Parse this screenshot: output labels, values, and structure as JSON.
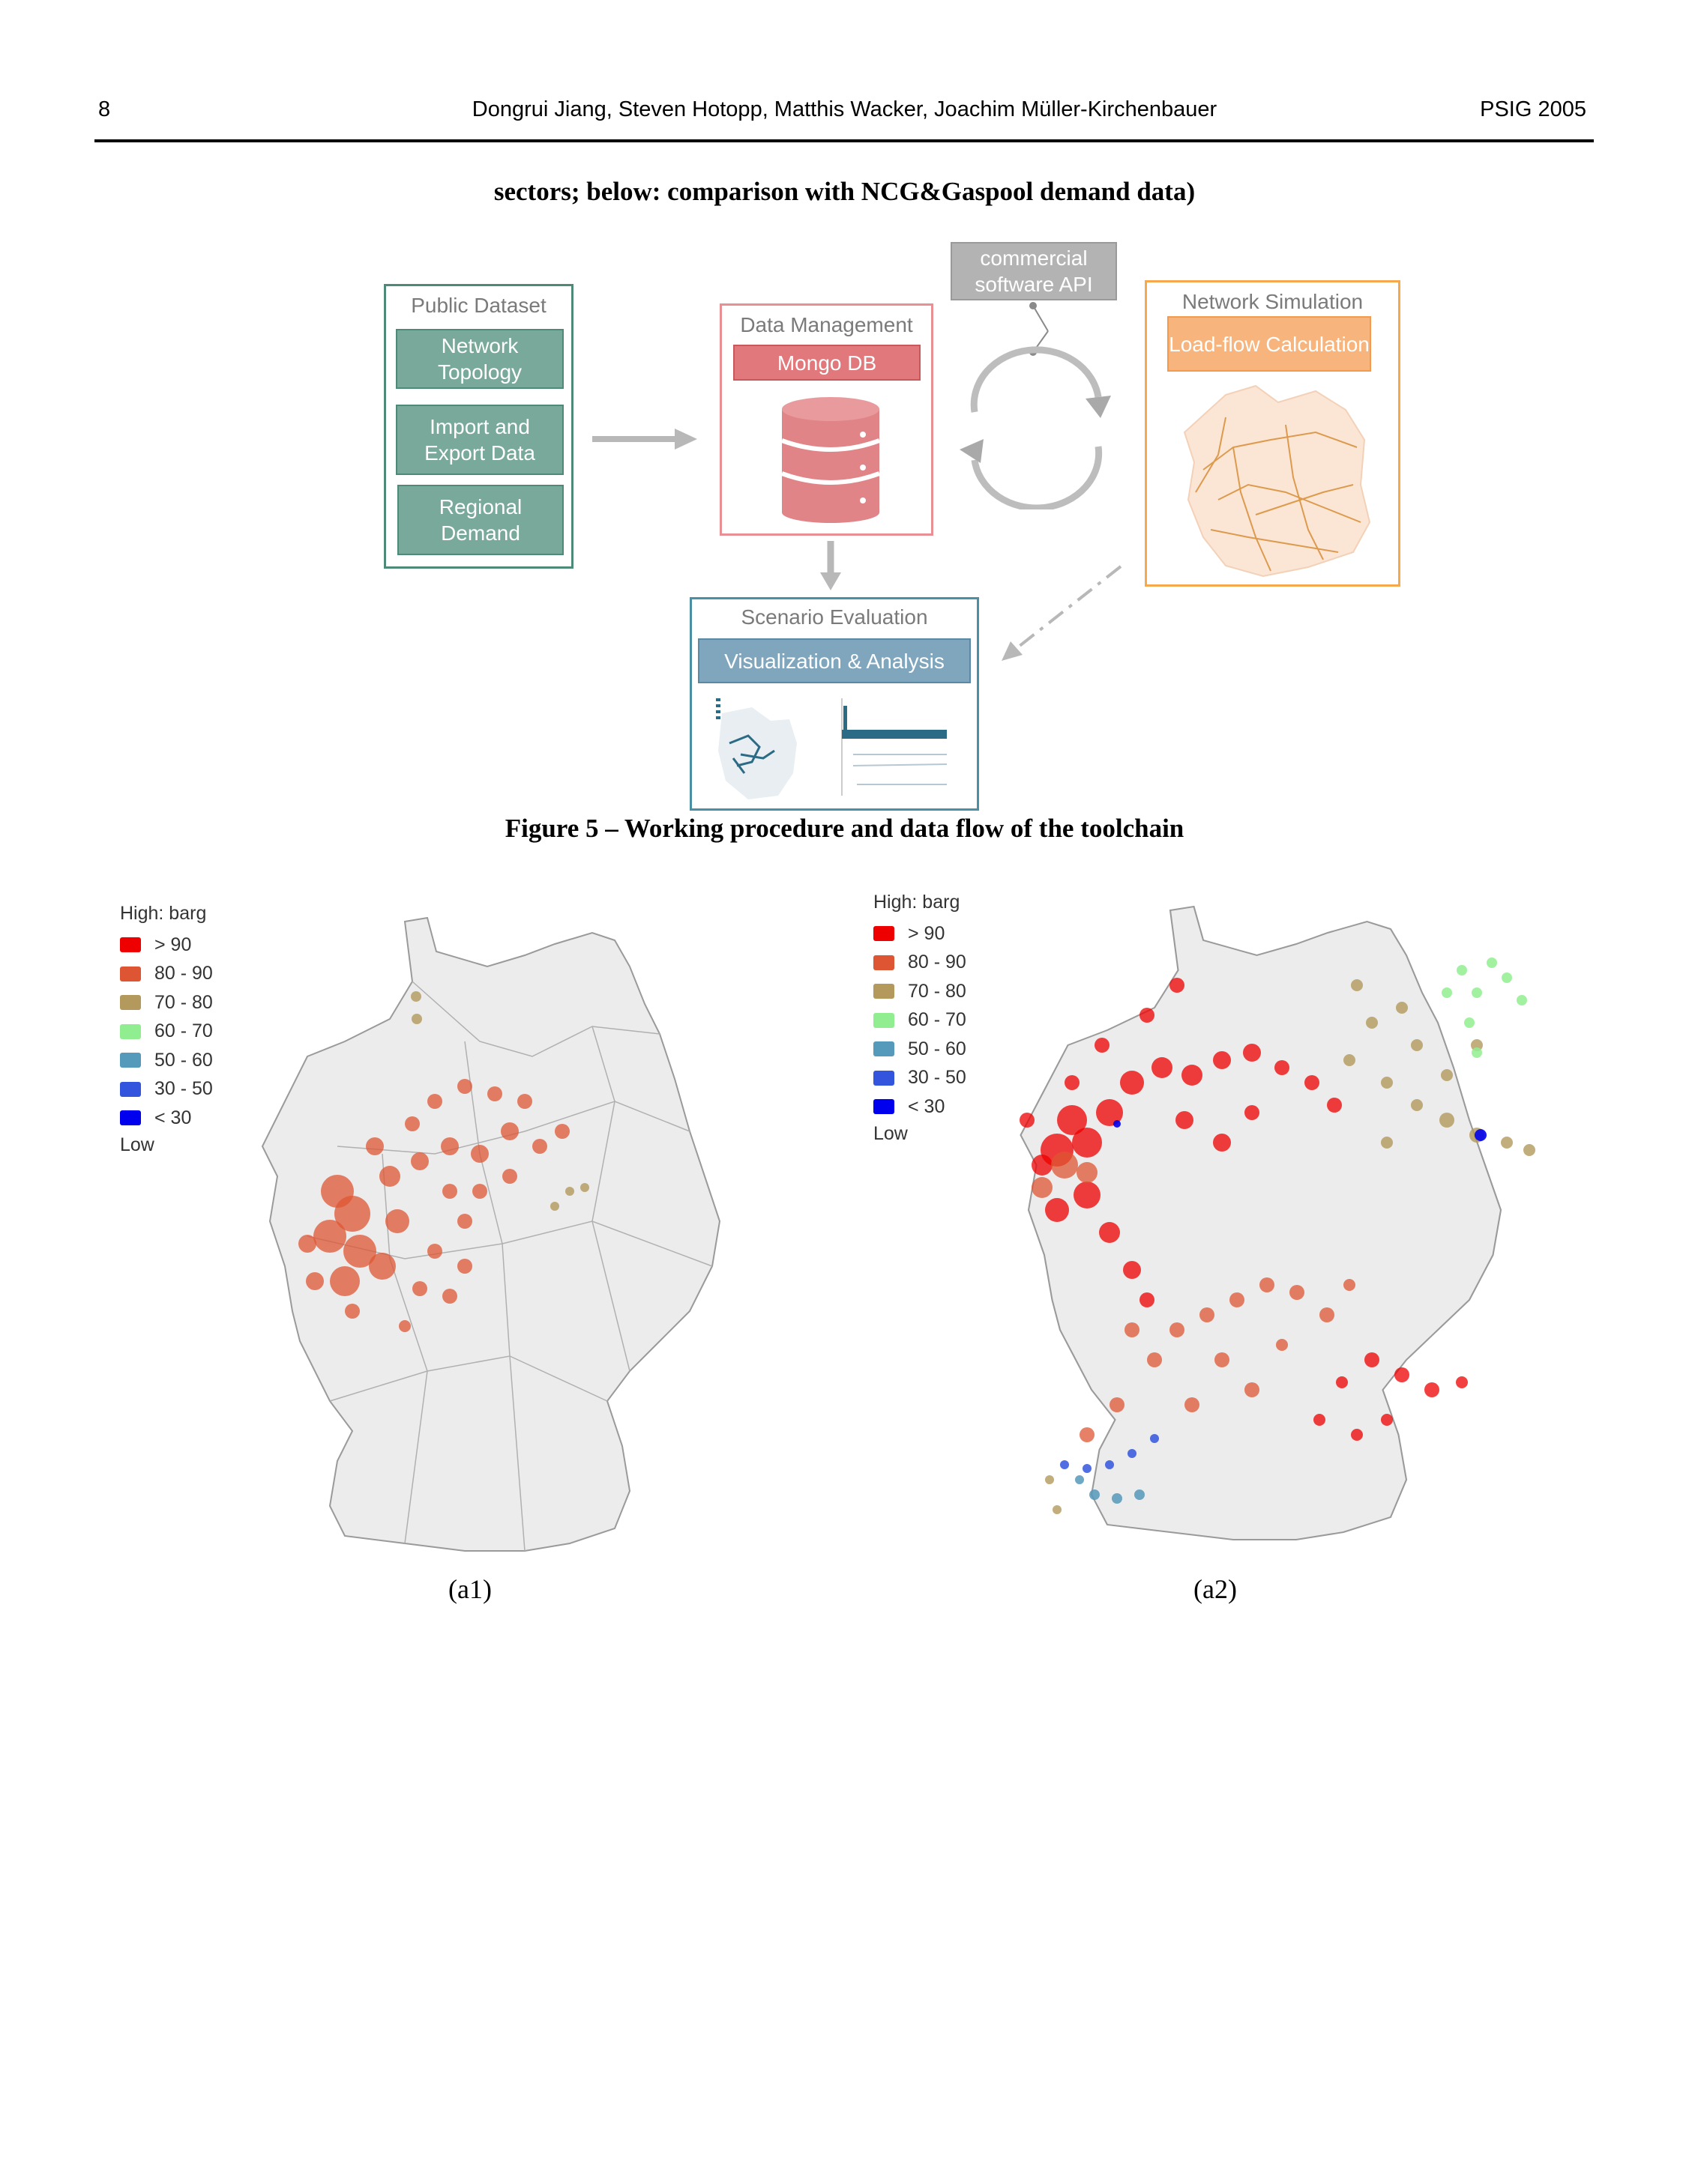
{
  "header": {
    "page_number": "8",
    "authors": "Dongrui Jiang, Steven Hotopp, Matthis Wacker, Joachim Müller-Kirchenbauer",
    "venue": "PSIG 2005"
  },
  "caption_top": "sectors; below: comparison with NCG&Gaspool demand data)",
  "figure5": {
    "caption": "Figure 5 – Working procedure and data flow of the toolchain",
    "public_dataset": {
      "title": "Public Dataset",
      "items": [
        "Network Topology",
        "Import and Export Data",
        "Regional Demand"
      ]
    },
    "data_management": {
      "title": "Data Management",
      "label": "Mongo DB"
    },
    "api": {
      "label": "commercial software API"
    },
    "network_simulation": {
      "title": "Network Simulation",
      "label": "Load-flow Calculation"
    },
    "scenario_evaluation": {
      "title": "Scenario Evaluation",
      "label": "Visualization & Analysis"
    },
    "colors": {
      "teal": "#78a99a",
      "red": "#e0787c",
      "gray": "#b3b3b3",
      "orange": "#f7b57d",
      "blue": "#7fa6bd"
    }
  },
  "figure6": {
    "legend": {
      "title": "High: barg",
      "low": "Low",
      "items": [
        {
          "label": "> 90",
          "color": "#ee0000"
        },
        {
          "label": "80 - 90",
          "color": "#dd5533"
        },
        {
          "label": "70 - 80",
          "color": "#b39a5c"
        },
        {
          "label": "60 - 70",
          "color": "#90ee90"
        },
        {
          "label": "50 - 60",
          "color": "#5599bb"
        },
        {
          "label": "30 - 50",
          "color": "#3355dd"
        },
        {
          "label": "< 30",
          "color": "#0000ee"
        }
      ]
    },
    "subfigure_labels": [
      "(a1)",
      "(a2)"
    ]
  }
}
